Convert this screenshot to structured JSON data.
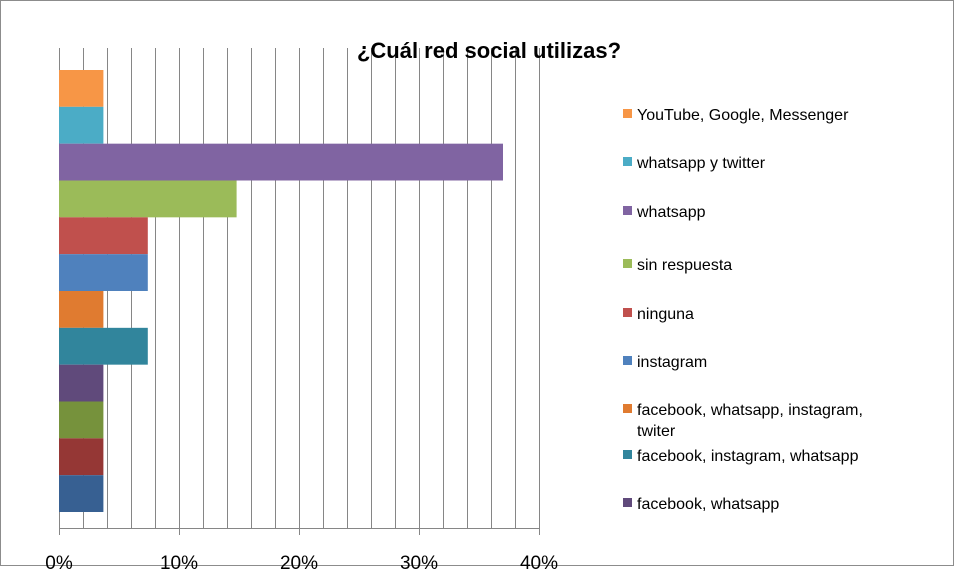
{
  "chart_data": {
    "type": "bar",
    "orientation": "horizontal",
    "title": "¿Cuál red social utilizas?",
    "xlabel": "",
    "ylabel": "",
    "xlim": [
      0,
      40
    ],
    "x_ticks": [
      "0%",
      "10%",
      "20%",
      "30%",
      "40%"
    ],
    "grid": true,
    "legend_position": "right",
    "series": [
      {
        "name": "YouTube, Google, Messenger",
        "value": 3.7,
        "color": "#F79646"
      },
      {
        "name": "whatsapp y twitter",
        "value": 3.7,
        "color": "#4BACC6"
      },
      {
        "name": "whatsapp",
        "value": 37.0,
        "color": "#8064A2"
      },
      {
        "name": "sin respuesta",
        "value": 14.8,
        "color": "#9BBB59"
      },
      {
        "name": "ninguna",
        "value": 7.4,
        "color": "#C0504D"
      },
      {
        "name": "instagram",
        "value": 7.4,
        "color": "#4F81BD"
      },
      {
        "name": "facebook, whatsapp, instagram, twiter",
        "value": 3.7,
        "color": "#E07B30"
      },
      {
        "name": "facebook, instagram, whatsapp",
        "value": 7.4,
        "color": "#31859C"
      },
      {
        "name": "facebook,  whatsapp",
        "value": 3.7,
        "color": "#604A7B"
      },
      {
        "name": "",
        "value": 3.7,
        "color": "#76923C"
      },
      {
        "name": "",
        "value": 3.7,
        "color": "#953735"
      },
      {
        "name": "",
        "value": 3.7,
        "color": "#376092"
      }
    ]
  }
}
